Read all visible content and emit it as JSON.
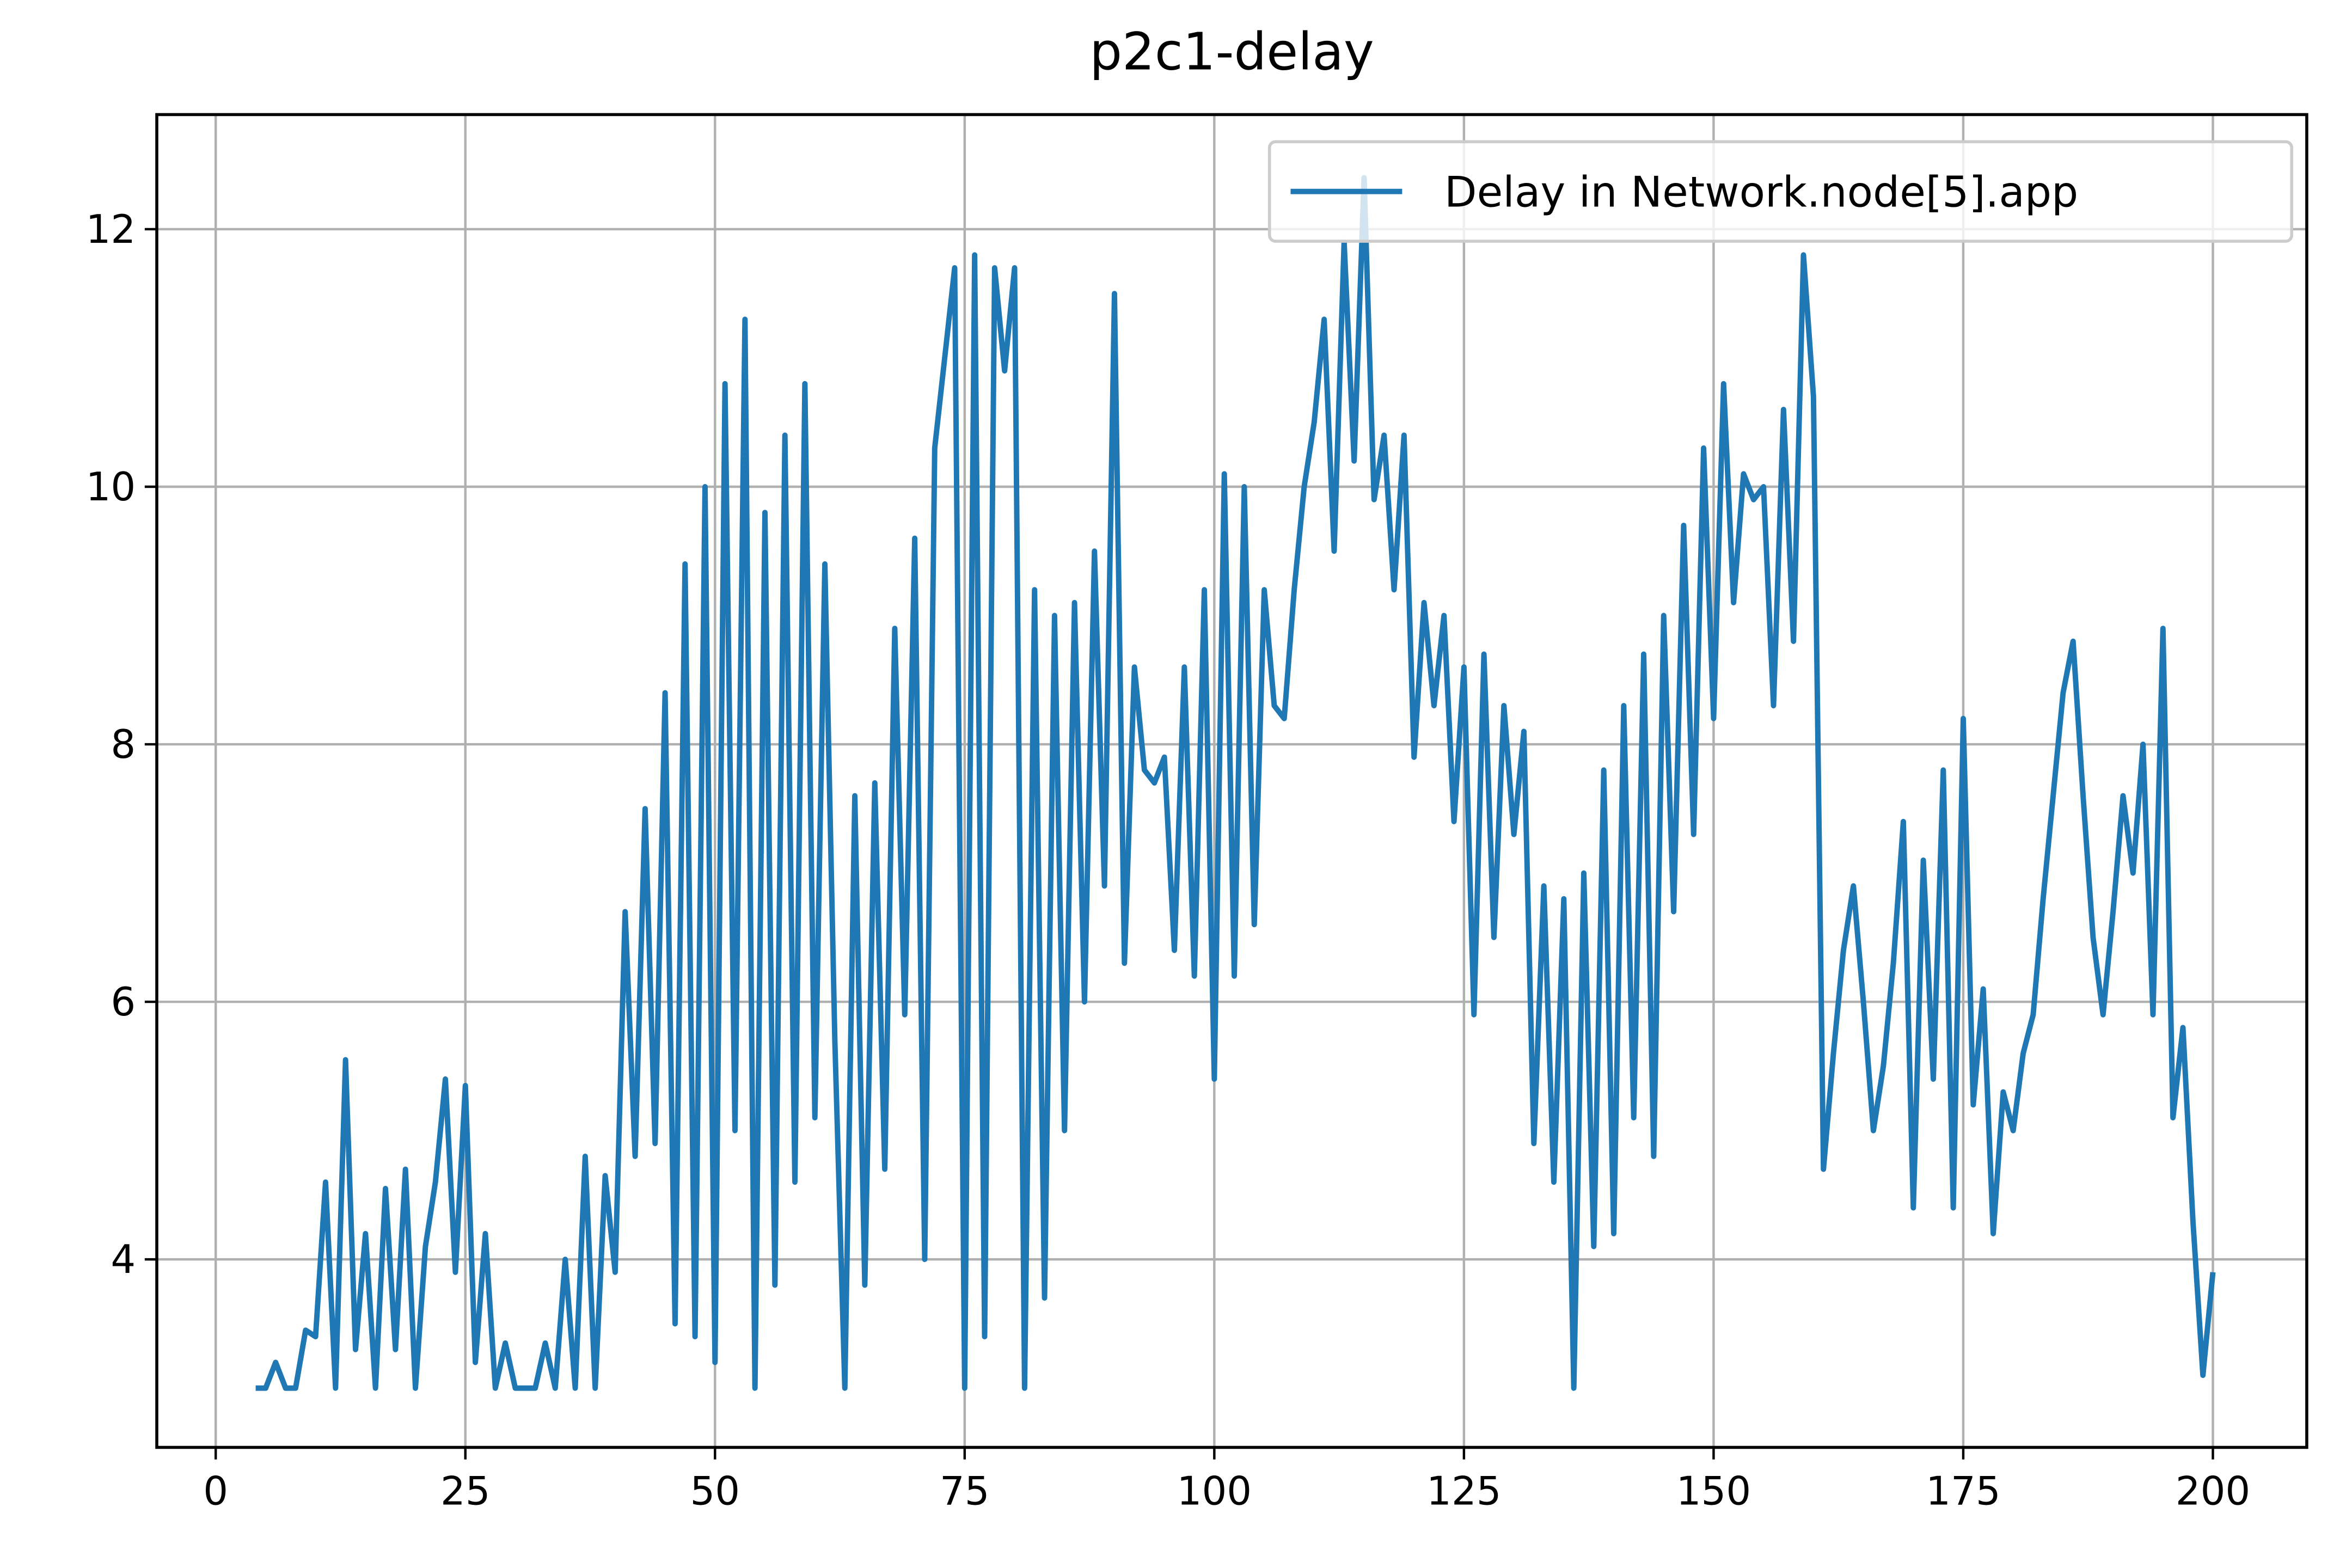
{
  "chart_data": {
    "type": "line",
    "title": "p2c1-delay",
    "x": [
      4,
      5,
      6,
      7,
      8,
      9,
      10,
      11,
      12,
      13,
      14,
      15,
      16,
      17,
      18,
      19,
      20,
      21,
      22,
      23,
      24,
      25,
      26,
      27,
      28,
      29,
      30,
      31,
      32,
      33,
      34,
      35,
      36,
      37,
      38,
      39,
      40,
      41,
      42,
      43,
      44,
      45,
      46,
      47,
      48,
      49,
      50,
      51,
      52,
      53,
      54,
      55,
      56,
      57,
      58,
      59,
      60,
      61,
      62,
      63,
      64,
      65,
      66,
      67,
      68,
      69,
      70,
      71,
      72,
      73,
      74,
      75,
      76,
      77,
      78,
      79,
      80,
      81,
      82,
      83,
      84,
      85,
      86,
      87,
      88,
      89,
      90,
      91,
      92,
      93,
      94,
      95,
      96,
      97,
      98,
      99,
      100,
      101,
      102,
      103,
      104,
      105,
      106,
      107,
      108,
      109,
      110,
      111,
      112,
      113,
      114,
      115,
      116,
      117,
      118,
      119,
      120,
      121,
      122,
      123,
      124,
      125,
      126,
      127,
      128,
      129,
      130,
      131,
      132,
      133,
      134,
      135,
      136,
      137,
      138,
      139,
      140,
      141,
      142,
      143,
      144,
      145,
      146,
      147,
      148,
      149,
      150,
      151,
      152,
      153,
      154,
      155,
      156,
      157,
      158,
      159,
      160,
      161,
      162,
      163,
      164,
      165,
      166,
      167,
      168,
      169,
      170,
      171,
      172,
      173,
      174,
      175,
      176,
      177,
      178,
      179,
      180,
      181,
      182,
      183,
      184,
      185,
      186,
      187,
      188,
      189,
      190,
      191,
      192,
      193,
      194,
      195,
      196,
      197,
      198,
      199,
      200
    ],
    "series": [
      {
        "name": "Delay in Network.node[5].app",
        "color": "#1f77b4",
        "values": [
          3.0,
          3.0,
          3.2,
          3.0,
          3.0,
          3.45,
          3.4,
          4.6,
          3.0,
          5.55,
          3.3,
          4.2,
          3.0,
          4.55,
          3.3,
          4.7,
          3.0,
          4.1,
          4.6,
          5.4,
          3.9,
          5.35,
          3.2,
          4.2,
          3.0,
          3.35,
          3.0,
          3.0,
          3.0,
          3.35,
          3.0,
          4.0,
          3.0,
          4.8,
          3.0,
          4.65,
          3.9,
          6.7,
          4.8,
          7.5,
          4.9,
          8.4,
          3.5,
          9.4,
          3.4,
          10.0,
          3.2,
          10.8,
          5.0,
          11.3,
          3.0,
          9.8,
          3.8,
          10.4,
          4.6,
          10.8,
          5.1,
          9.4,
          5.7,
          3.0,
          7.6,
          3.8,
          7.7,
          4.7,
          8.9,
          5.9,
          9.6,
          4.0,
          10.3,
          11.0,
          11.7,
          3.0,
          11.8,
          3.4,
          11.7,
          10.9,
          11.7,
          3.0,
          9.2,
          3.7,
          9.0,
          5.0,
          9.1,
          6.0,
          9.5,
          6.9,
          11.5,
          6.3,
          8.6,
          7.8,
          7.7,
          7.9,
          6.4,
          8.6,
          6.2,
          9.2,
          5.4,
          10.1,
          6.2,
          10.0,
          6.6,
          9.2,
          8.3,
          8.2,
          9.2,
          10.0,
          10.5,
          11.3,
          9.5,
          11.9,
          10.2,
          12.4,
          9.9,
          10.4,
          9.2,
          10.4,
          7.9,
          9.1,
          8.3,
          9.0,
          7.4,
          8.6,
          5.9,
          8.7,
          6.5,
          8.3,
          7.3,
          8.1,
          4.9,
          6.9,
          4.6,
          6.8,
          3.0,
          7.0,
          4.1,
          7.8,
          4.2,
          8.3,
          5.1,
          8.7,
          4.8,
          9.0,
          6.7,
          9.7,
          7.3,
          10.3,
          8.2,
          10.8,
          9.1,
          10.1,
          9.9,
          10.0,
          8.3,
          10.6,
          8.8,
          11.8,
          10.7,
          4.7,
          5.6,
          6.4,
          6.9,
          6.0,
          5.0,
          5.5,
          6.3,
          7.4,
          4.4,
          7.1,
          5.4,
          7.8,
          4.4,
          8.2,
          5.2,
          6.1,
          4.2,
          5.3,
          5.0,
          5.6,
          5.9,
          6.8,
          7.6,
          8.4,
          8.8,
          7.6,
          6.5,
          5.9,
          6.7,
          7.6,
          7.0,
          8.0,
          5.9,
          8.9,
          5.1,
          5.8,
          4.3,
          3.1,
          3.9
        ]
      }
    ],
    "xlim": [
      -5.9,
      209.4
    ],
    "ylim": [
      2.54,
      12.89
    ],
    "xticks": [
      0,
      25,
      50,
      75,
      100,
      125,
      150,
      175,
      200
    ],
    "yticks": [
      4,
      6,
      8,
      10,
      12
    ],
    "grid": true,
    "legend": "upper right"
  }
}
